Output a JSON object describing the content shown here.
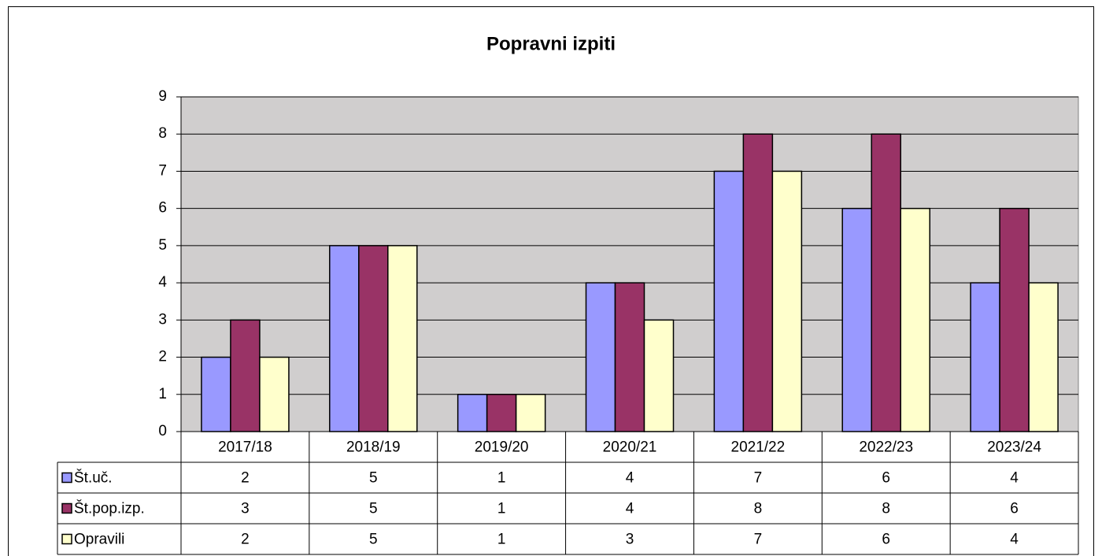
{
  "chart_data": {
    "type": "bar",
    "title": "Popravni izpiti",
    "categories": [
      "2017/18",
      "2018/19",
      "2019/20",
      "2020/21",
      "2021/22",
      "2022/23",
      "2023/24"
    ],
    "series": [
      {
        "name": "Št.uč.",
        "color": "#9999ff",
        "values": [
          2,
          5,
          1,
          4,
          7,
          6,
          4
        ]
      },
      {
        "name": "Št.pop.izp.",
        "color": "#993366",
        "values": [
          3,
          5,
          1,
          4,
          8,
          8,
          6
        ]
      },
      {
        "name": "Opravili",
        "color": "#ffffcc",
        "values": [
          2,
          5,
          1,
          3,
          7,
          6,
          4
        ]
      }
    ],
    "ylim": [
      0,
      9
    ],
    "yticks": [
      0,
      1,
      2,
      3,
      4,
      5,
      6,
      7,
      8,
      9
    ],
    "grid": true
  }
}
